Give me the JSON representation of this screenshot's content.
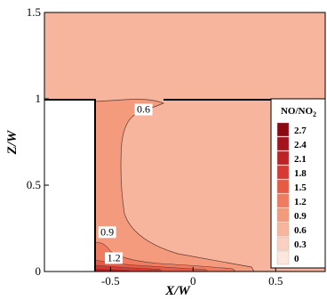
{
  "chart_data": {
    "type": "contour",
    "xlabel": "X/W",
    "ylabel": "Z/W",
    "xlim": [
      -0.9,
      0.8
    ],
    "ylim": [
      0,
      1.5
    ],
    "xticks": [
      {
        "v": -0.5,
        "label": "-0.5"
      },
      {
        "v": 0,
        "label": "0"
      },
      {
        "v": 0.5,
        "label": "0.5"
      }
    ],
    "yticks": [
      {
        "v": 0,
        "label": "0"
      },
      {
        "v": 0.5,
        "label": "0.5"
      },
      {
        "v": 1,
        "label": "1"
      },
      {
        "v": 1.5,
        "label": "1.5"
      }
    ],
    "colorbar": {
      "title": "NO/NO2",
      "title_main": "NO/NO",
      "title_sub": "2",
      "levels": [
        {
          "value": 2.7,
          "label": "2.7",
          "color": "#8b0a12"
        },
        {
          "value": 2.4,
          "label": "2.4",
          "color": "#a3141b"
        },
        {
          "value": 2.1,
          "label": "2.1",
          "color": "#bd2225"
        },
        {
          "value": 1.8,
          "label": "1.8",
          "color": "#d63a34"
        },
        {
          "value": 1.5,
          "label": "1.5",
          "color": "#e65a46"
        },
        {
          "value": 1.2,
          "label": "1.2",
          "color": "#ef7b60"
        },
        {
          "value": 0.9,
          "label": "0.9",
          "color": "#f49a7d"
        },
        {
          "value": 0.6,
          "label": "0.6",
          "color": "#f7b59d"
        },
        {
          "value": 0.3,
          "label": "0.3",
          "color": "#fad1c0"
        },
        {
          "value": 0,
          "label": "0",
          "color": "#fde7dd"
        }
      ]
    },
    "geometry": {
      "building_x_range": [
        -0.9,
        -0.5
      ],
      "building_top_z": 1.0,
      "canyon_x_range": [
        -0.5,
        0.4
      ]
    },
    "contour_labels": [
      {
        "text": "0.6",
        "x": -0.3,
        "y": 0.93
      },
      {
        "text": "0.9",
        "x": -0.52,
        "y": 0.22
      },
      {
        "text": "1.2",
        "x": -0.48,
        "y": 0.07
      }
    ]
  }
}
